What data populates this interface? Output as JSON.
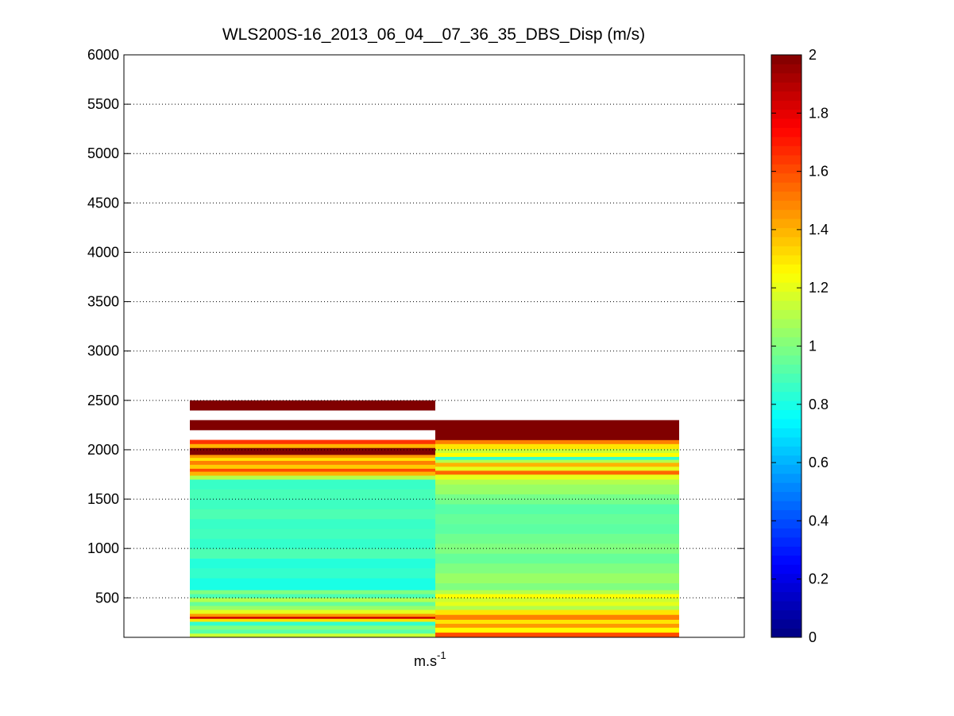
{
  "chart_data": {
    "type": "heatmap",
    "title": "WLS200S-16_2013_06_04__07_36_35_DBS_Disp (m/s)",
    "xlabel_base": "m.s",
    "xlabel_exponent": "-1",
    "ylabel": "",
    "ylim": [
      100,
      6000
    ],
    "yticks": [
      500,
      1000,
      1500,
      2000,
      2500,
      3000,
      3500,
      4000,
      4500,
      5000,
      5500,
      6000
    ],
    "grid": "y-dotted",
    "colormap": "jet",
    "clim": [
      0,
      2
    ],
    "colorbar_ticks": [
      0,
      0.2,
      0.4,
      0.6,
      0.8,
      1,
      1.2,
      1.4,
      1.6,
      1.8,
      2
    ],
    "colorbar_tick_labels": [
      "0",
      "0.2",
      "0.4",
      "0.6",
      "0.8",
      "1",
      "1.2",
      "1.4",
      "1.6",
      "1.8",
      "2"
    ],
    "columns": [
      {
        "bands": [
          [
            100,
            140,
            1.15
          ],
          [
            140,
            180,
            0.92
          ],
          [
            180,
            220,
            1.0
          ],
          [
            220,
            260,
            0.85
          ],
          [
            260,
            290,
            1.3
          ],
          [
            290,
            310,
            1.85
          ],
          [
            310,
            340,
            1.45
          ],
          [
            340,
            380,
            1.2
          ],
          [
            380,
            420,
            1.05
          ],
          [
            420,
            460,
            0.95
          ],
          [
            460,
            500,
            1.1
          ],
          [
            500,
            540,
            0.9
          ],
          [
            540,
            580,
            1.0
          ],
          [
            580,
            700,
            0.8
          ],
          [
            700,
            800,
            0.85
          ],
          [
            800,
            900,
            0.82
          ],
          [
            900,
            1000,
            0.9
          ],
          [
            1000,
            1100,
            0.85
          ],
          [
            1100,
            1200,
            0.88
          ],
          [
            1200,
            1300,
            0.86
          ],
          [
            1300,
            1400,
            0.9
          ],
          [
            1400,
            1500,
            0.87
          ],
          [
            1500,
            1600,
            0.89
          ],
          [
            1600,
            1700,
            0.86
          ],
          [
            1700,
            1740,
            1.1
          ],
          [
            1740,
            1780,
            1.4
          ],
          [
            1780,
            1810,
            1.6
          ],
          [
            1810,
            1850,
            1.35
          ],
          [
            1850,
            1890,
            1.5
          ],
          [
            1890,
            1920,
            1.3
          ],
          [
            1920,
            1950,
            1.45
          ],
          [
            1950,
            2020,
            2.0
          ],
          [
            2020,
            2060,
            1.4
          ],
          [
            2060,
            2100,
            1.65
          ],
          [
            2200,
            2300,
            2.0
          ],
          [
            2400,
            2500,
            2.0
          ]
        ]
      },
      {
        "bands": [
          [
            100,
            150,
            1.6
          ],
          [
            150,
            200,
            1.25
          ],
          [
            200,
            240,
            1.45
          ],
          [
            240,
            280,
            1.3
          ],
          [
            280,
            330,
            1.5
          ],
          [
            330,
            380,
            1.3
          ],
          [
            380,
            420,
            1.1
          ],
          [
            420,
            460,
            1.2
          ],
          [
            460,
            500,
            1.15
          ],
          [
            500,
            540,
            1.25
          ],
          [
            540,
            580,
            1.1
          ],
          [
            580,
            650,
            1.0
          ],
          [
            650,
            750,
            1.05
          ],
          [
            750,
            850,
            1.0
          ],
          [
            850,
            950,
            0.95
          ],
          [
            950,
            1050,
            1.0
          ],
          [
            1050,
            1150,
            0.97
          ],
          [
            1150,
            1250,
            0.93
          ],
          [
            1250,
            1350,
            0.95
          ],
          [
            1350,
            1450,
            0.92
          ],
          [
            1450,
            1550,
            0.98
          ],
          [
            1550,
            1650,
            1.05
          ],
          [
            1650,
            1700,
            1.1
          ],
          [
            1700,
            1750,
            1.2
          ],
          [
            1750,
            1790,
            1.55
          ],
          [
            1790,
            1830,
            1.2
          ],
          [
            1830,
            1870,
            1.4
          ],
          [
            1870,
            1900,
            1.1
          ],
          [
            1900,
            1930,
            0.85
          ],
          [
            1930,
            1970,
            1.25
          ],
          [
            1970,
            2010,
            1.15
          ],
          [
            2010,
            2060,
            1.3
          ],
          [
            2060,
            2100,
            1.5
          ],
          [
            2100,
            2300,
            2.0
          ]
        ]
      }
    ]
  }
}
